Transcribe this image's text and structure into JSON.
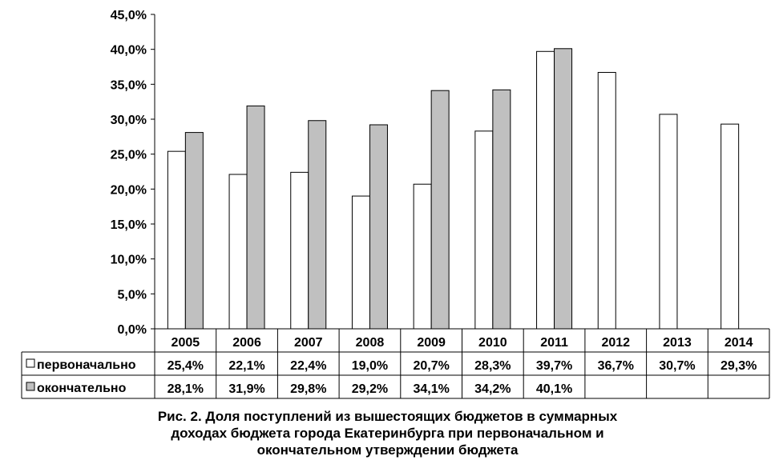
{
  "chart_data": {
    "type": "bar",
    "categories": [
      "2005",
      "2006",
      "2007",
      "2008",
      "2009",
      "2010",
      "2011",
      "2012",
      "2013",
      "2014"
    ],
    "series": [
      {
        "name": "первоначально",
        "values": [
          25.4,
          22.1,
          22.4,
          19.0,
          20.7,
          28.3,
          39.7,
          36.7,
          30.7,
          29.3
        ],
        "labels": [
          "25,4%",
          "22,1%",
          "22,4%",
          "19,0%",
          "20,7%",
          "28,3%",
          "39,7%",
          "36,7%",
          "30,7%",
          "29,3%"
        ],
        "color": "#ffffff"
      },
      {
        "name": "окончательно",
        "values": [
          28.1,
          31.9,
          29.8,
          29.2,
          34.1,
          34.2,
          40.1,
          null,
          null,
          null
        ],
        "labels": [
          "28,1%",
          "31,9%",
          "29,8%",
          "29,2%",
          "34,1%",
          "34,2%",
          "40,1%",
          "",
          "",
          ""
        ],
        "color": "#c0c0c0"
      }
    ],
    "ylim": [
      0,
      45
    ],
    "yticks": [
      "0,0%",
      "5,0%",
      "10,0%",
      "15,0%",
      "20,0%",
      "25,0%",
      "30,0%",
      "35,0%",
      "40,0%",
      "45,0%"
    ],
    "legend": "data-table",
    "grid": false
  },
  "caption": [
    "Рис. 2. Доля поступлений из вышестоящих бюджетов в суммарных",
    "доходах бюджета города Екатеринбурга при первоначальном и",
    "окончательном утверждении бюджета"
  ]
}
